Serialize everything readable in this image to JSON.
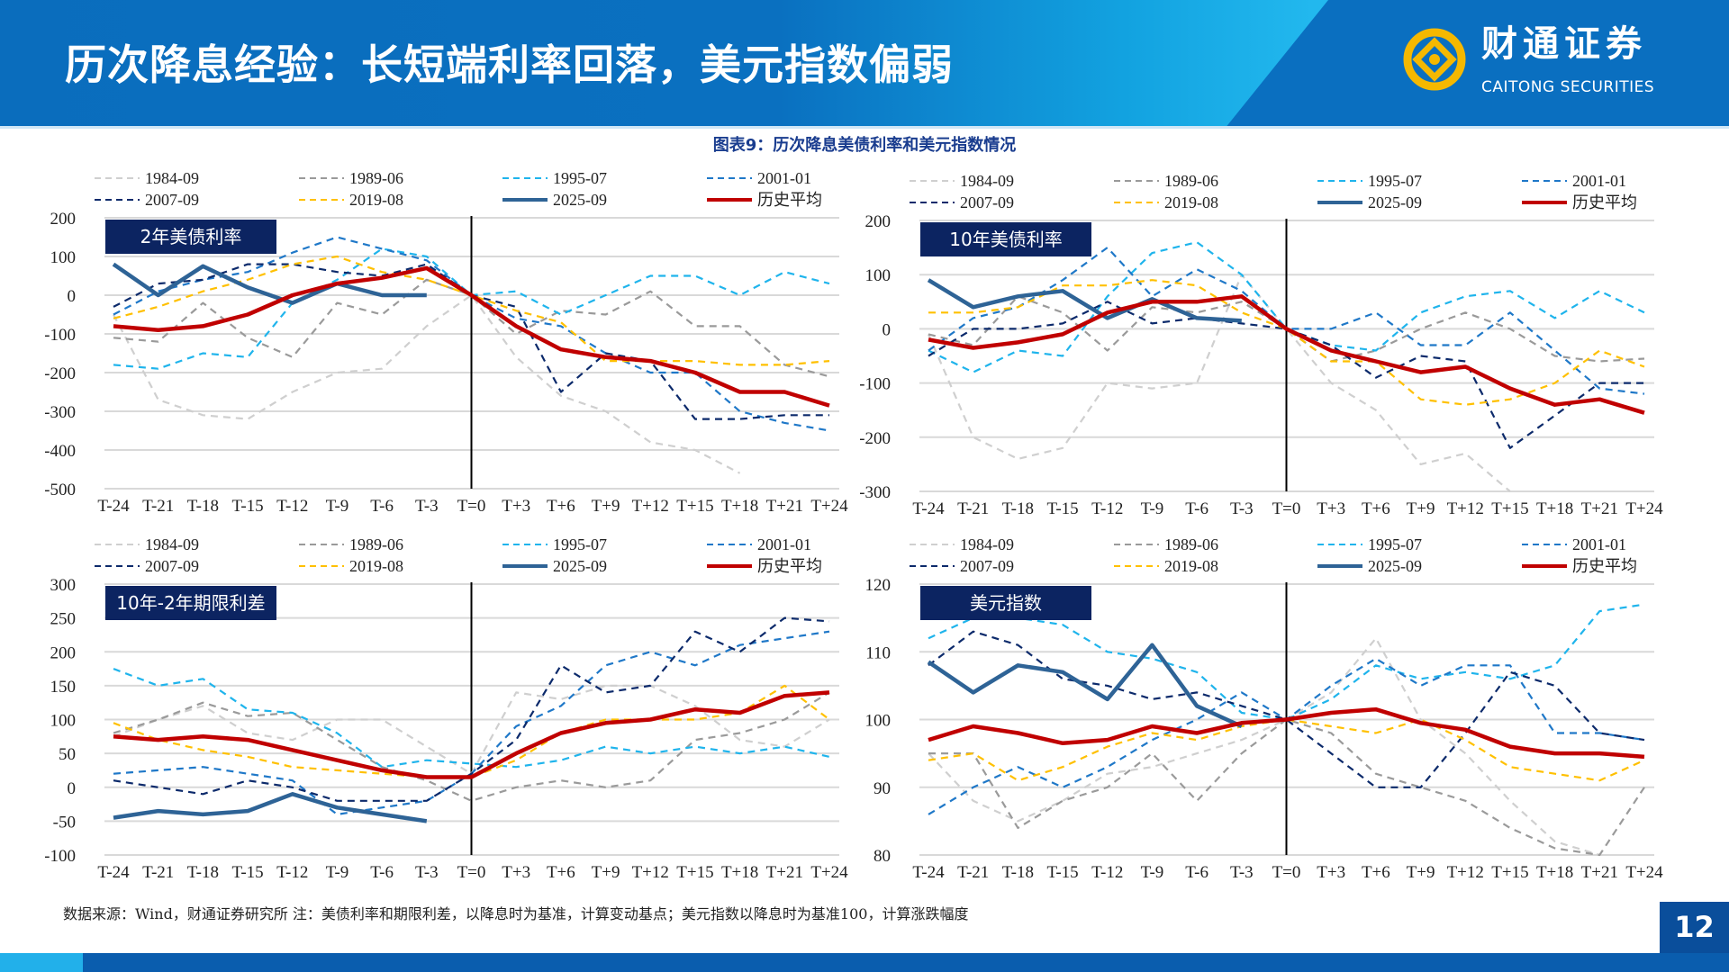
{
  "header": {
    "title": "历次降息经验：长短端利率回落，美元指数偏弱",
    "brand_cn": "财通证券",
    "brand_en": "CAITONG SECURITIES"
  },
  "caption": "图表9：历次降息美债利率和美元指数情况",
  "footer": {
    "note": "数据来源：Wind，财通证券研究所   注：美债利率和期限利差，以降息时为基准，计算变动基点；美元指数以降息时为基准100，计算涨跌幅度",
    "page": "12"
  },
  "series_styles": [
    {
      "name": "1984-09",
      "color": "#cfcfcf",
      "dash": true
    },
    {
      "name": "1989-06",
      "color": "#9a9a9a",
      "dash": true
    },
    {
      "name": "1995-07",
      "color": "#1fb4ec",
      "dash": true
    },
    {
      "name": "2001-01",
      "color": "#1f78c8",
      "dash": true
    },
    {
      "name": "2007-09",
      "color": "#0c2a6b",
      "dash": true
    },
    {
      "name": "2019-08",
      "color": "#ffc000",
      "dash": true
    },
    {
      "name": "2025-09",
      "color": "#2e6396",
      "dash": false
    },
    {
      "name": "历史平均",
      "color": "#c00000",
      "dash": false
    }
  ],
  "chart_data": [
    {
      "type": "line",
      "title": "2年美债利率",
      "ylim": [
        -500,
        200
      ],
      "yticks": [
        200,
        100,
        0,
        -100,
        -200,
        -300,
        -400,
        -500
      ],
      "x": [
        -24,
        -21,
        -18,
        -15,
        -12,
        -9,
        -6,
        -3,
        0,
        3,
        6,
        9,
        12,
        15,
        18,
        21,
        24
      ],
      "xticklabels": [
        "T-24",
        "T-21",
        "T-18",
        "T-15",
        "T-12",
        "T-9",
        "T-6",
        "T-3",
        "T=0",
        "T+3",
        "T+6",
        "T+9",
        "T+12",
        "T+15",
        "T+18",
        "T+21",
        "T+24"
      ],
      "series": [
        {
          "name": "1984-09",
          "values": [
            -50,
            -270,
            -310,
            -320,
            -250,
            -200,
            -190,
            -80,
            0,
            -160,
            -260,
            -300,
            -380,
            -400,
            -460,
            null,
            null
          ]
        },
        {
          "name": "1989-06",
          "values": [
            -110,
            -120,
            -20,
            -110,
            -160,
            -20,
            -50,
            40,
            0,
            -100,
            -40,
            -50,
            10,
            -80,
            -80,
            -180,
            -210
          ]
        },
        {
          "name": "1995-07",
          "values": [
            -180,
            -190,
            -150,
            -160,
            -20,
            40,
            120,
            100,
            0,
            10,
            -50,
            0,
            50,
            50,
            0,
            60,
            30
          ]
        },
        {
          "name": "2001-01",
          "values": [
            -50,
            10,
            40,
            60,
            110,
            150,
            120,
            90,
            0,
            -60,
            -80,
            -150,
            -200,
            -200,
            -300,
            -330,
            -350
          ]
        },
        {
          "name": "2007-09",
          "values": [
            -30,
            30,
            40,
            80,
            80,
            60,
            50,
            80,
            0,
            -30,
            -250,
            -150,
            -170,
            -320,
            -320,
            -310,
            -310
          ]
        },
        {
          "name": "2019-08",
          "values": [
            -60,
            -30,
            10,
            40,
            80,
            100,
            60,
            40,
            0,
            -40,
            -70,
            -170,
            -170,
            -170,
            -180,
            -180,
            -170
          ]
        },
        {
          "name": "2025-09",
          "values": [
            80,
            0,
            75,
            20,
            -20,
            30,
            0,
            0,
            null,
            null,
            null,
            null,
            null,
            null,
            null,
            null,
            null
          ]
        },
        {
          "name": "历史平均",
          "values": [
            -80,
            -90,
            -80,
            -50,
            0,
            30,
            45,
            70,
            0,
            -80,
            -140,
            -160,
            -170,
            -200,
            -250,
            -250,
            -285
          ]
        }
      ]
    },
    {
      "type": "line",
      "title": "10年美债利率",
      "ylim": [
        -300,
        200
      ],
      "yticks": [
        200,
        100,
        0,
        -100,
        -200,
        -300
      ],
      "x": [
        -24,
        -21,
        -18,
        -15,
        -12,
        -9,
        -6,
        -3,
        0,
        3,
        6,
        9,
        12,
        15,
        18,
        21,
        24
      ],
      "xticklabels": [
        "T-24",
        "T-21",
        "T-18",
        "T-15",
        "T-12",
        "T-9",
        "T-6",
        "T-3",
        "T=0",
        "T+3",
        "T+6",
        "T+9",
        "T+12",
        "T+15",
        "T+18",
        "T+21",
        "T+24"
      ],
      "series": [
        {
          "name": "1984-09",
          "values": [
            -10,
            -200,
            -240,
            -220,
            -100,
            -110,
            -100,
            100,
            0,
            -100,
            -150,
            -250,
            -230,
            -300,
            null,
            null,
            null
          ]
        },
        {
          "name": "1989-06",
          "values": [
            -10,
            -30,
            60,
            30,
            -40,
            40,
            30,
            50,
            0,
            -60,
            -40,
            0,
            30,
            0,
            -50,
            -60,
            -55
          ]
        },
        {
          "name": "1995-07",
          "values": [
            -40,
            -80,
            -40,
            -50,
            60,
            140,
            160,
            100,
            0,
            -30,
            -40,
            30,
            60,
            70,
            20,
            70,
            30
          ]
        },
        {
          "name": "2001-01",
          "values": [
            -40,
            20,
            40,
            90,
            150,
            60,
            110,
            70,
            0,
            0,
            30,
            -30,
            -30,
            30,
            -40,
            -110,
            -120
          ]
        },
        {
          "name": "2007-09",
          "values": [
            -50,
            0,
            0,
            10,
            50,
            10,
            20,
            10,
            0,
            -30,
            -90,
            -50,
            -60,
            -220,
            -160,
            -100,
            -100
          ]
        },
        {
          "name": "2019-08",
          "values": [
            30,
            30,
            40,
            80,
            80,
            90,
            80,
            30,
            0,
            -60,
            -60,
            -130,
            -140,
            -130,
            -100,
            -40,
            -70
          ]
        },
        {
          "name": "2025-09",
          "values": [
            90,
            40,
            60,
            70,
            20,
            55,
            20,
            15,
            null,
            null,
            null,
            null,
            null,
            null,
            null,
            null,
            null
          ]
        },
        {
          "name": "历史平均",
          "values": [
            -20,
            -35,
            -25,
            -10,
            30,
            50,
            50,
            60,
            0,
            -40,
            -60,
            -80,
            -70,
            -110,
            -140,
            -130,
            -155
          ]
        }
      ]
    },
    {
      "type": "line",
      "title": "10年-2年期限利差",
      "ylim": [
        -100,
        300
      ],
      "yticks": [
        300,
        250,
        200,
        150,
        100,
        50,
        0,
        -50,
        -100
      ],
      "x": [
        -24,
        -21,
        -18,
        -15,
        -12,
        -9,
        -6,
        -3,
        0,
        3,
        6,
        9,
        12,
        15,
        18,
        21,
        24
      ],
      "xticklabels": [
        "T-24",
        "T-21",
        "T-18",
        "T-15",
        "T-12",
        "T-9",
        "T-6",
        "T-3",
        "T=0",
        "T+3",
        "T+6",
        "T+9",
        "T+12",
        "T+15",
        "T+18",
        "T+21",
        "T+24"
      ],
      "series": [
        {
          "name": "1984-09",
          "values": [
            75,
            100,
            120,
            80,
            70,
            100,
            100,
            60,
            20,
            140,
            130,
            150,
            150,
            120,
            70,
            60,
            100
          ]
        },
        {
          "name": "1989-06",
          "values": [
            80,
            100,
            125,
            105,
            110,
            70,
            30,
            10,
            -20,
            0,
            10,
            0,
            10,
            70,
            80,
            100,
            140
          ]
        },
        {
          "name": "1995-07",
          "values": [
            175,
            150,
            160,
            115,
            110,
            80,
            30,
            40,
            35,
            30,
            40,
            60,
            50,
            60,
            50,
            60,
            45
          ]
        },
        {
          "name": "2001-01",
          "values": [
            20,
            25,
            30,
            20,
            10,
            -40,
            -30,
            -20,
            20,
            90,
            120,
            180,
            200,
            180,
            210,
            220,
            230
          ]
        },
        {
          "name": "2007-09",
          "values": [
            10,
            0,
            -10,
            10,
            0,
            -20,
            -20,
            -20,
            20,
            70,
            180,
            140,
            150,
            230,
            200,
            250,
            245
          ]
        },
        {
          "name": "2019-08",
          "values": [
            95,
            70,
            55,
            45,
            30,
            25,
            20,
            15,
            15,
            40,
            80,
            100,
            100,
            100,
            110,
            150,
            100
          ]
        },
        {
          "name": "2025-09",
          "values": [
            -45,
            -35,
            -40,
            -35,
            -10,
            -30,
            -40,
            -50,
            null,
            null,
            null,
            null,
            null,
            null,
            null,
            null,
            null
          ]
        },
        {
          "name": "历史平均",
          "values": [
            75,
            70,
            75,
            70,
            55,
            40,
            25,
            15,
            15,
            50,
            80,
            95,
            100,
            115,
            110,
            135,
            140
          ]
        }
      ]
    },
    {
      "type": "line",
      "title": "美元指数",
      "ylim": [
        80,
        120
      ],
      "yticks": [
        120,
        110,
        100,
        90,
        80
      ],
      "x": [
        -24,
        -21,
        -18,
        -15,
        -12,
        -9,
        -6,
        -3,
        0,
        3,
        6,
        9,
        12,
        15,
        18,
        21,
        24
      ],
      "xticklabels": [
        "T-24",
        "T-21",
        "T-18",
        "T-15",
        "T-12",
        "T-9",
        "T-6",
        "T-3",
        "T=0",
        "T+3",
        "T+6",
        "T+9",
        "T+12",
        "T+15",
        "T+18",
        "T+21",
        "T+24"
      ],
      "series": [
        {
          "name": "1984-09",
          "values": [
            95,
            88,
            85,
            88,
            92,
            93,
            95,
            97,
            100,
            104,
            112,
            100,
            95,
            88,
            82,
            80,
            null
          ]
        },
        {
          "name": "1989-06",
          "values": [
            95,
            95,
            84,
            88,
            90,
            95,
            88,
            95,
            100,
            98,
            92,
            90,
            88,
            84,
            81,
            80,
            90
          ]
        },
        {
          "name": "1995-07",
          "values": [
            112,
            115,
            115,
            114,
            110,
            109,
            107,
            101,
            100,
            103,
            108,
            106,
            107,
            106,
            108,
            116,
            117
          ]
        },
        {
          "name": "2001-01",
          "values": [
            86,
            90,
            93,
            90,
            93,
            97,
            100,
            104,
            100,
            105,
            109,
            105,
            108,
            108,
            98,
            98,
            97
          ]
        },
        {
          "name": "2007-09",
          "values": [
            108,
            113,
            111,
            106,
            105,
            103,
            104,
            102,
            100,
            95,
            90,
            90,
            98,
            107,
            105,
            98,
            97
          ]
        },
        {
          "name": "2019-08",
          "values": [
            94,
            95,
            91,
            93,
            96,
            98,
            97,
            99,
            100,
            99,
            98,
            100,
            97,
            93,
            92,
            91,
            94
          ]
        },
        {
          "name": "2025-09",
          "values": [
            108.5,
            104,
            108,
            107,
            103,
            111,
            102,
            99,
            null,
            null,
            null,
            null,
            null,
            null,
            null,
            null,
            null
          ]
        },
        {
          "name": "历史平均",
          "values": [
            97,
            99,
            98,
            96.5,
            97,
            99,
            98,
            99.5,
            100,
            101,
            101.5,
            99.5,
            98.5,
            96,
            95,
            95,
            94.5
          ]
        }
      ]
    }
  ]
}
